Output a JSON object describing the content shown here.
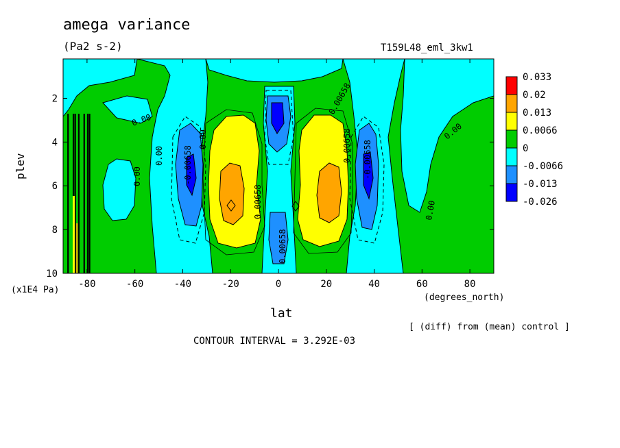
{
  "title": "amega variance",
  "units": "(Pa2 s-2)",
  "run_label": "T159L48_eml_3kw1",
  "diff_note": "[ (diff) from (mean) control ]",
  "contour_interval": "CONTOUR INTERVAL = 3.292E-03",
  "chart_data": {
    "type": "heatmap",
    "title": "amega variance",
    "xlabel": "lat",
    "x_units": "(degrees_north)",
    "ylabel": "plev",
    "y_units": "(x1E4 Pa)",
    "xlim": [
      -90,
      90
    ],
    "ylim": [
      10,
      0.2
    ],
    "x_ticks": [
      -80,
      -60,
      -40,
      -20,
      0,
      20,
      40,
      60,
      80
    ],
    "x_tick_labels": [
      "-80",
      "-60",
      "-40",
      "-20",
      "0",
      "20",
      "40",
      "60",
      "80"
    ],
    "y_ticks": [
      2,
      4,
      6,
      8,
      10
    ],
    "y_tick_labels": [
      "2",
      "4",
      "6",
      "8",
      "10"
    ],
    "colorbar": {
      "levels": [
        0.033,
        0.02,
        0.013,
        0.0066,
        0,
        -0.0066,
        -0.013,
        -0.026
      ],
      "labels": [
        "0.033",
        "0.02",
        "0.013",
        "0.0066",
        "0",
        "-0.0066",
        "-0.013",
        "-0.026"
      ],
      "colors": [
        "#ff0000",
        "#ffa500",
        "#ffff00",
        "#00cc00",
        "#00ffff",
        "#1e90ff",
        "#0000ff"
      ]
    },
    "fields": [
      {
        "name": "positive lobe SH",
        "lat": -20,
        "plev": 7.0,
        "peak": 0.02
      },
      {
        "name": "positive lobe NH",
        "lat": 22,
        "plev": 6.8,
        "peak": 0.02
      },
      {
        "name": "negative lobe SH",
        "lat": -37,
        "plev": 5.5,
        "peak": -0.013
      },
      {
        "name": "negative lobe NH",
        "lat": 38,
        "plev": 5.5,
        "peak": -0.013
      },
      {
        "name": "equatorial upper minimum",
        "lat": -2,
        "plev": 3.0,
        "peak": -0.013
      },
      {
        "name": "equatorial lower minimum",
        "lat": 0,
        "plev": 8.8,
        "peak": -0.013
      }
    ],
    "contour_labels": [
      "0.00",
      "0.00",
      "0.00",
      "0.00",
      "0.00",
      "0.00",
      "-0.00658",
      "0.00658",
      "0.00658",
      "0.00658",
      "-0.00658",
      "0.00658"
    ],
    "contour_interval": 0.003292
  }
}
